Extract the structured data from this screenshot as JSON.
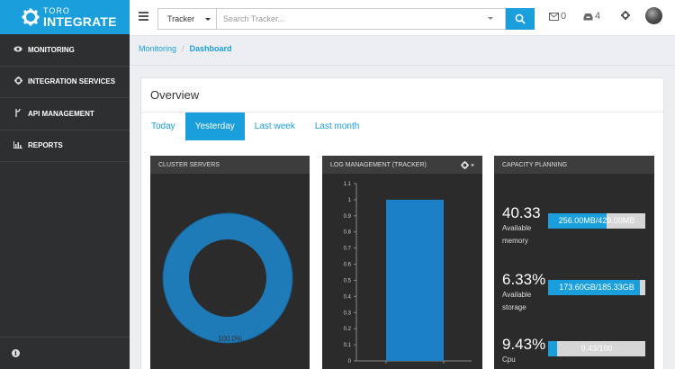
{
  "sidebar": {
    "logo_top": "TORO",
    "logo_bottom": "INTEGRATE",
    "items": [
      {
        "label": "MONITORING",
        "icon": "eye-icon"
      },
      {
        "label": "INTEGRATION SERVICES",
        "icon": "gear-icon"
      },
      {
        "label": "API MANAGEMENT",
        "icon": "branch-icon"
      },
      {
        "label": "REPORTS",
        "icon": "bar-chart-icon"
      }
    ],
    "footer_icon": "info-icon"
  },
  "topbar": {
    "tracker_select": "Tracker",
    "search_placeholder": "Search Tracker...",
    "messages_count": "0",
    "inbox_count": "4"
  },
  "breadcrumb": {
    "parent": "Monitoring",
    "current": "Dashboard"
  },
  "overview": {
    "title": "Overview",
    "tabs": [
      {
        "label": "Today",
        "active": false
      },
      {
        "label": "Yesterday",
        "active": true
      },
      {
        "label": "Last week",
        "active": false
      },
      {
        "label": "Last month",
        "active": false
      }
    ]
  },
  "cards": {
    "cluster_title": "CLUSTER SERVERS",
    "log_title": "LOG MANAGEMENT (TRACKER)",
    "capacity_title": "CAPACITY PLANNING"
  },
  "cluster_donut": {
    "label": "100.0%",
    "value_percent": 100,
    "color": "#1f7ab8"
  },
  "chart_data": {
    "type": "bar",
    "categories": [
      ""
    ],
    "values": [
      1
    ],
    "title": "",
    "xlabel": "",
    "ylabel": "",
    "ylim": [
      0,
      1.1
    ],
    "y_ticks": [
      "0",
      "0.1",
      "0.2",
      "0.3",
      "0.4",
      "0.5",
      "0.6",
      "0.7",
      "0.8",
      "0.9",
      "1",
      "1.1"
    ],
    "bar_color": "#1a7fc4",
    "grid": false
  },
  "capacity": [
    {
      "value": "40.33",
      "label_line1": "Available",
      "label_line2": "memory",
      "bar_text": "256.00MB/429.00MB",
      "fill_fraction": 0.6
    },
    {
      "value": "6.33%",
      "label_line1": "Available",
      "label_line2": "storage",
      "bar_text": "173.60GB/185.33GB",
      "fill_fraction": 0.94
    },
    {
      "value": "9.43%",
      "label_line1": "Cpu",
      "label_line2": "",
      "bar_text": "9.43/100",
      "fill_fraction": 0.0943
    }
  ],
  "colors": {
    "accent": "#1a9fdc",
    "sidebar": "#2e2f31",
    "card": "#2b2b2b"
  }
}
